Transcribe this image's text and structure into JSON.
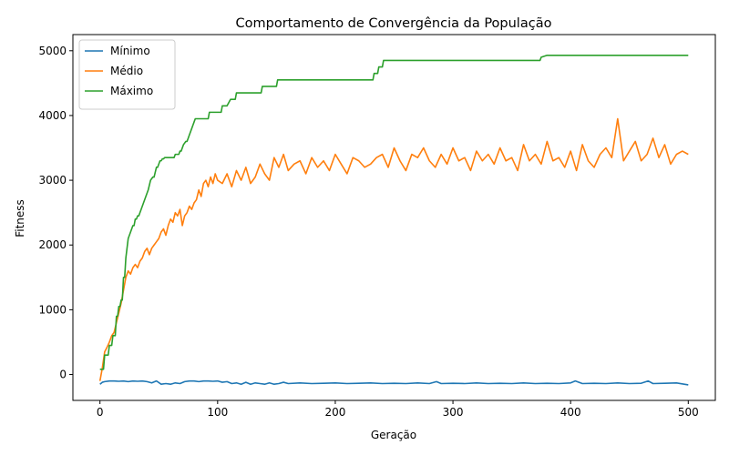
{
  "chart_data": {
    "type": "line",
    "title": "Comportamento de Convergência da População",
    "xlabel": "Geração",
    "ylabel": "Fitness",
    "xlim": [
      -23,
      523
    ],
    "ylim": [
      -400,
      5250
    ],
    "xticks": [
      0,
      100,
      200,
      300,
      400,
      500
    ],
    "yticks": [
      0,
      1000,
      2000,
      3000,
      4000,
      5000
    ],
    "grid": false,
    "legend": "top-left",
    "series": [
      {
        "name": "Mínimo",
        "color": "#1f77b4",
        "x": [
          0,
          2,
          4,
          8,
          12,
          16,
          20,
          24,
          28,
          32,
          36,
          40,
          44,
          48,
          52,
          56,
          60,
          64,
          68,
          72,
          76,
          80,
          84,
          88,
          92,
          96,
          100,
          104,
          108,
          112,
          116,
          120,
          124,
          128,
          132,
          136,
          140,
          144,
          148,
          152,
          156,
          160,
          170,
          180,
          190,
          200,
          210,
          220,
          230,
          240,
          250,
          260,
          270,
          280,
          286,
          290,
          300,
          310,
          320,
          330,
          340,
          350,
          360,
          370,
          380,
          390,
          400,
          404,
          410,
          420,
          430,
          440,
          450,
          460,
          466,
          470,
          480,
          490,
          500
        ],
        "values": [
          -150,
          -120,
          -110,
          -100,
          -100,
          -105,
          -100,
          -110,
          -100,
          -105,
          -100,
          -110,
          -130,
          -100,
          -150,
          -140,
          -150,
          -130,
          -140,
          -110,
          -100,
          -100,
          -110,
          -100,
          -100,
          -105,
          -100,
          -120,
          -110,
          -140,
          -130,
          -150,
          -120,
          -150,
          -130,
          -140,
          -150,
          -130,
          -150,
          -140,
          -120,
          -140,
          -130,
          -140,
          -135,
          -130,
          -140,
          -135,
          -130,
          -140,
          -135,
          -140,
          -130,
          -140,
          -110,
          -140,
          -135,
          -140,
          -130,
          -140,
          -135,
          -140,
          -130,
          -140,
          -135,
          -140,
          -130,
          -100,
          -140,
          -135,
          -140,
          -130,
          -140,
          -135,
          -100,
          -140,
          -135,
          -130,
          -160
        ]
      },
      {
        "name": "Médio",
        "color": "#ff7f0e",
        "x": [
          0,
          2,
          4,
          6,
          8,
          10,
          12,
          14,
          16,
          18,
          20,
          22,
          24,
          26,
          28,
          30,
          32,
          34,
          36,
          38,
          40,
          42,
          44,
          46,
          48,
          50,
          52,
          54,
          56,
          58,
          60,
          62,
          64,
          66,
          68,
          70,
          72,
          74,
          76,
          78,
          80,
          82,
          84,
          86,
          88,
          90,
          92,
          94,
          96,
          98,
          100,
          104,
          108,
          112,
          116,
          120,
          124,
          128,
          132,
          136,
          140,
          144,
          148,
          152,
          156,
          160,
          165,
          170,
          175,
          180,
          185,
          190,
          195,
          200,
          205,
          210,
          215,
          220,
          225,
          230,
          235,
          240,
          245,
          250,
          255,
          260,
          265,
          270,
          275,
          280,
          285,
          290,
          295,
          300,
          305,
          310,
          315,
          320,
          325,
          330,
          335,
          340,
          345,
          350,
          355,
          360,
          365,
          370,
          375,
          380,
          385,
          390,
          395,
          400,
          405,
          410,
          415,
          420,
          425,
          430,
          435,
          440,
          445,
          450,
          455,
          460,
          465,
          470,
          475,
          480,
          485,
          490,
          495,
          500
        ],
        "values": [
          -100,
          100,
          350,
          420,
          500,
          600,
          650,
          800,
          950,
          1100,
          1300,
          1500,
          1600,
          1550,
          1650,
          1700,
          1650,
          1750,
          1800,
          1900,
          1950,
          1850,
          1950,
          2000,
          2050,
          2100,
          2200,
          2250,
          2150,
          2300,
          2400,
          2350,
          2500,
          2450,
          2550,
          2300,
          2450,
          2500,
          2600,
          2550,
          2650,
          2700,
          2850,
          2750,
          2950,
          3000,
          2900,
          3050,
          2950,
          3100,
          3000,
          2950,
          3100,
          2900,
          3150,
          3000,
          3200,
          2950,
          3050,
          3250,
          3100,
          3000,
          3350,
          3200,
          3400,
          3150,
          3250,
          3300,
          3100,
          3350,
          3200,
          3300,
          3150,
          3400,
          3250,
          3100,
          3350,
          3300,
          3200,
          3250,
          3350,
          3400,
          3200,
          3500,
          3300,
          3150,
          3400,
          3350,
          3500,
          3300,
          3200,
          3400,
          3250,
          3500,
          3300,
          3350,
          3150,
          3450,
          3300,
          3400,
          3250,
          3500,
          3300,
          3350,
          3150,
          3550,
          3300,
          3400,
          3250,
          3600,
          3300,
          3350,
          3200,
          3450,
          3150,
          3550,
          3300,
          3200,
          3400,
          3500,
          3350,
          3950,
          3300,
          3450,
          3600,
          3300,
          3400,
          3650,
          3350,
          3550,
          3250,
          3400,
          3450,
          3400
        ]
      },
      {
        "name": "Máximo",
        "color": "#2ca02c",
        "x": [
          0,
          3,
          4,
          7,
          8,
          10,
          11,
          13,
          14,
          15,
          16,
          17,
          18,
          19,
          20,
          21,
          22,
          24,
          26,
          28,
          29,
          30,
          31,
          32,
          33,
          34,
          35,
          37,
          39,
          41,
          43,
          45,
          46,
          48,
          49,
          51,
          52,
          53,
          54,
          55,
          60,
          63,
          64,
          67,
          68,
          69,
          70,
          71,
          73,
          74,
          75,
          76,
          77,
          78,
          79,
          80,
          81,
          82,
          83,
          84,
          85,
          86,
          87,
          88,
          92,
          93,
          98,
          99,
          100,
          103,
          104,
          107,
          108,
          111,
          112,
          115,
          116,
          119,
          120,
          137,
          138,
          149,
          150,
          151,
          155,
          232,
          233,
          236,
          237,
          240,
          241,
          374,
          375,
          380,
          430,
          500
        ],
        "values": [
          80,
          80,
          300,
          300,
          450,
          450,
          600,
          600,
          900,
          900,
          1050,
          1050,
          1150,
          1150,
          1500,
          1500,
          1800,
          2100,
          2200,
          2300,
          2300,
          2400,
          2400,
          2450,
          2450,
          2500,
          2550,
          2650,
          2750,
          2850,
          3000,
          3050,
          3050,
          3200,
          3200,
          3300,
          3300,
          3330,
          3330,
          3350,
          3350,
          3350,
          3400,
          3400,
          3450,
          3450,
          3500,
          3550,
          3600,
          3600,
          3650,
          3700,
          3750,
          3800,
          3850,
          3900,
          3950,
          3950,
          3950,
          3950,
          3950,
          3950,
          3950,
          3950,
          3950,
          4050,
          4050,
          4050,
          4050,
          4050,
          4150,
          4150,
          4150,
          4250,
          4250,
          4250,
          4350,
          4350,
          4350,
          4350,
          4450,
          4450,
          4450,
          4550,
          4550,
          4550,
          4650,
          4650,
          4750,
          4750,
          4850,
          4850,
          4900,
          4930,
          4930,
          4930
        ]
      }
    ]
  }
}
